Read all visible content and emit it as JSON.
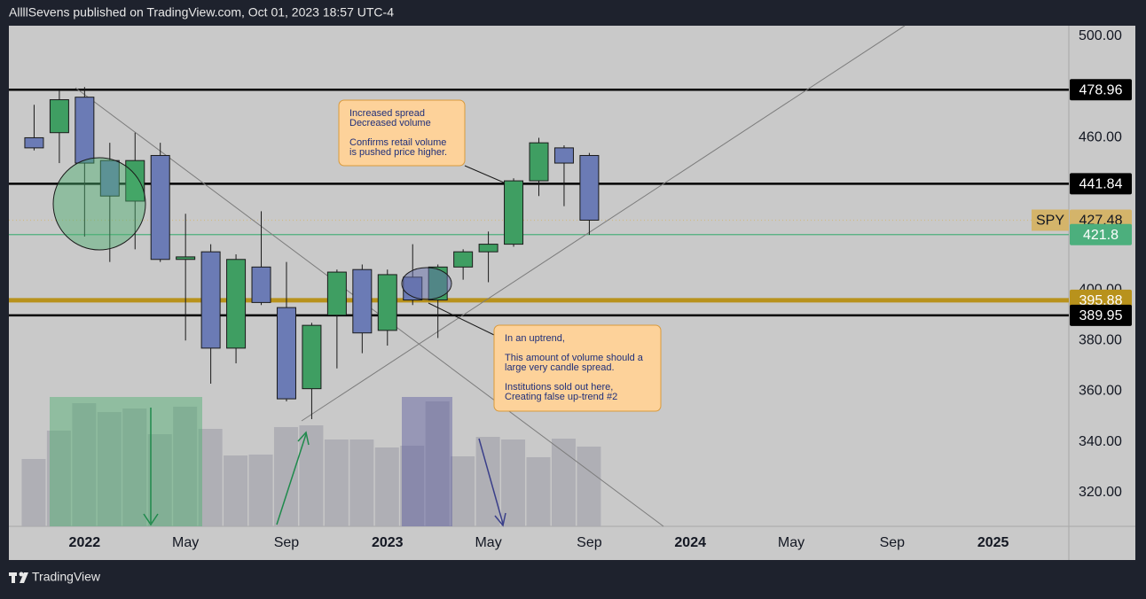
{
  "header": "AllllSevens published on TradingView.com, Oct 01, 2023 18:57 UTC-4",
  "footer": "TradingView",
  "chart_data": {
    "type": "candlestick",
    "symbol": "SPY",
    "x": [
      "2021-11",
      "2021-12",
      "2022-01",
      "2022-02",
      "2022-03",
      "2022-04",
      "2022-05",
      "2022-06",
      "2022-07",
      "2022-08",
      "2022-09",
      "2022-10",
      "2022-11",
      "2022-12",
      "2023-01",
      "2023-02",
      "2023-03",
      "2023-04",
      "2023-05",
      "2023-06",
      "2023-07",
      "2023-08",
      "2023-09"
    ],
    "open": [
      460,
      462,
      476,
      451,
      435,
      453,
      412,
      415,
      377,
      409,
      393,
      361,
      390,
      408,
      384,
      405,
      396,
      409,
      415,
      418,
      443,
      456,
      453
    ],
    "high": [
      473,
      479,
      480,
      458,
      462,
      458,
      430,
      418,
      414,
      431,
      411,
      387,
      408,
      410,
      408,
      418,
      410,
      416,
      423,
      444,
      460,
      457,
      454
    ],
    "low": [
      455,
      450,
      421,
      411,
      416,
      411,
      380,
      363,
      371,
      394,
      356,
      349,
      369,
      375,
      378,
      394,
      381,
      404,
      403,
      417,
      437,
      433,
      421.7
    ],
    "close": [
      456,
      475,
      450,
      437,
      451,
      412,
      413,
      377,
      412,
      395,
      357,
      386,
      407,
      383,
      406,
      396,
      409,
      415,
      418,
      443,
      458,
      450,
      427.48
    ],
    "volume": [
      1520,
      2160,
      2780,
      2580,
      2660,
      2080,
      2700,
      2200,
      1600,
      1620,
      2240,
      2280,
      1960,
      1960,
      1780,
      1820,
      2820,
      1580,
      2020,
      1960,
      1560,
      1980,
      1800
    ],
    "up_color": "#3f9e62",
    "down_color": "#6b7bb5",
    "volume_color": "#a9a9b0",
    "volume_ylim": [
      0,
      3400
    ],
    "xlim": [
      "2021-10",
      "2025-04"
    ],
    "xticks": [
      {
        "value": "2022-01",
        "label": "2022"
      },
      {
        "value": "2022-05",
        "label": "May"
      },
      {
        "value": "2022-09",
        "label": "Sep"
      },
      {
        "value": "2023-01",
        "label": "2023"
      },
      {
        "value": "2023-05",
        "label": "May"
      },
      {
        "value": "2023-09",
        "label": "Sep"
      },
      {
        "value": "2024-01",
        "label": "2024"
      },
      {
        "value": "2024-05",
        "label": "May"
      },
      {
        "value": "2024-09",
        "label": "Sep"
      },
      {
        "value": "2025-01",
        "label": "2025"
      }
    ],
    "ylim": [
      306.7,
      504.2
    ],
    "yticks": [
      {
        "value": 500,
        "label": "500.00"
      },
      {
        "value": 460,
        "label": "460.00"
      },
      {
        "value": 400,
        "label": "400.00"
      },
      {
        "value": 380,
        "label": "380.00"
      },
      {
        "value": 360,
        "label": "360.00"
      },
      {
        "value": 340,
        "label": "340.00"
      },
      {
        "value": 320,
        "label": "320.00"
      }
    ],
    "levels": [
      {
        "value": 478.96,
        "color": "#000000"
      },
      {
        "value": 441.84,
        "color": "#000000"
      },
      {
        "value": 427.48,
        "color": "#d4b46a"
      },
      {
        "value": 421.8,
        "color": "#4caf7d"
      },
      {
        "value": 395.88,
        "color": "#b8921c"
      },
      {
        "value": 389.95,
        "color": "#000000"
      }
    ],
    "annotations": [
      {
        "lines": [
          "Increased spread",
          "Decreased volume",
          "",
          "Confirms retail volume",
          "is pushed price higher."
        ]
      },
      {
        "lines": [
          "In an uptrend,",
          "",
          "This amount of volume should a",
          "large very candle spread.",
          "",
          "Institutions sold out here,",
          "Creating false up-trend #2"
        ]
      }
    ]
  }
}
